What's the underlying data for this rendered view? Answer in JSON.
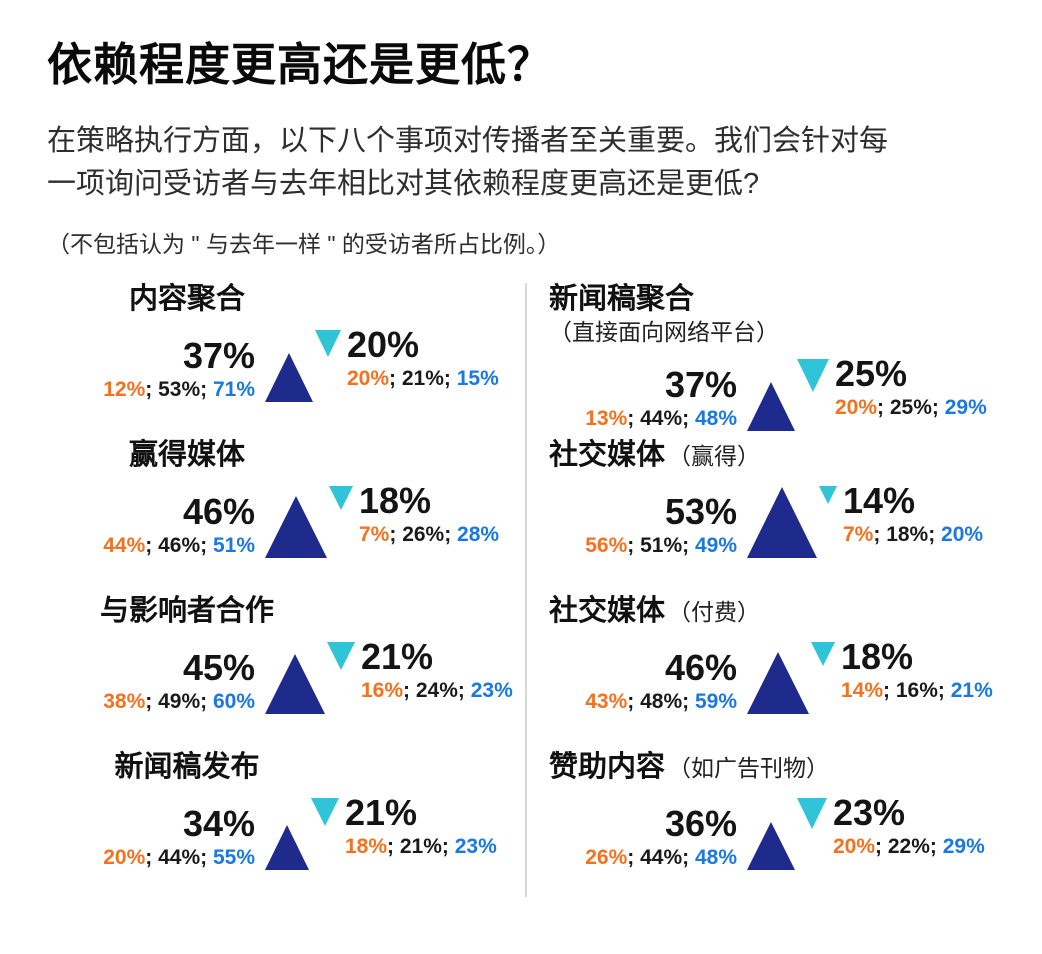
{
  "page": {
    "title": "依赖程度更高还是更低？",
    "intro": "在策略执行方面，以下八个事项对传播者至关重要。我们会针对每一项询问受访者与去年相比对其依赖程度更高还是更低?",
    "note": "（不包括认为 \" 与去年一样 \" 的受访者所占比例。）"
  },
  "colors": {
    "up_triangle": "#1e2b8c",
    "down_triangle": "#2fc4d8",
    "breakdown_first": "#f4711f",
    "breakdown_second": "#1a1a1a",
    "breakdown_third": "#1a78e0"
  },
  "chart_data": {
    "type": "table",
    "title": "依赖程度更高还是更低？",
    "legend_hint": "深蓝上三角=依赖更高%，青色下三角=依赖更低%；小字三组数值依次为橙/黑/蓝",
    "items": [
      {
        "title": "内容聚合",
        "subtitle": "",
        "up": {
          "value": 37,
          "label": "37%",
          "breakdown": [
            "12%",
            "53%",
            "71%"
          ]
        },
        "down": {
          "value": 20,
          "label": "20%",
          "breakdown": [
            "20%",
            "21%",
            "15%"
          ]
        }
      },
      {
        "title": "赢得媒体",
        "subtitle": "",
        "up": {
          "value": 46,
          "label": "46%",
          "breakdown": [
            "44%",
            "46%",
            "51%"
          ]
        },
        "down": {
          "value": 18,
          "label": "18%",
          "breakdown": [
            "7%",
            "26%",
            "28%"
          ]
        }
      },
      {
        "title": "与影响者合作",
        "subtitle": "",
        "up": {
          "value": 45,
          "label": "45%",
          "breakdown": [
            "38%",
            "49%",
            "60%"
          ]
        },
        "down": {
          "value": 21,
          "label": "21%",
          "breakdown": [
            "16%",
            "24%",
            "23%"
          ]
        }
      },
      {
        "title": "新闻稿发布",
        "subtitle": "",
        "up": {
          "value": 34,
          "label": "34%",
          "breakdown": [
            "20%",
            "44%",
            "55%"
          ]
        },
        "down": {
          "value": 21,
          "label": "21%",
          "breakdown": [
            "18%",
            "21%",
            "23%"
          ]
        }
      },
      {
        "title": "新闻稿聚合",
        "subtitle": "（直接面向网络平台）",
        "up": {
          "value": 37,
          "label": "37%",
          "breakdown": [
            "13%",
            "44%",
            "48%"
          ]
        },
        "down": {
          "value": 25,
          "label": "25%",
          "breakdown": [
            "20%",
            "25%",
            "29%"
          ]
        }
      },
      {
        "title": "社交媒体",
        "subtitle": "（赢得）",
        "up": {
          "value": 53,
          "label": "53%",
          "breakdown": [
            "56%",
            "51%",
            "49%"
          ]
        },
        "down": {
          "value": 14,
          "label": "14%",
          "breakdown": [
            "7%",
            "18%",
            "20%"
          ]
        }
      },
      {
        "title": "社交媒体",
        "subtitle": "（付费）",
        "up": {
          "value": 46,
          "label": "46%",
          "breakdown": [
            "43%",
            "48%",
            "59%"
          ]
        },
        "down": {
          "value": 18,
          "label": "18%",
          "breakdown": [
            "14%",
            "16%",
            "21%"
          ]
        }
      },
      {
        "title": "赞助内容",
        "subtitle": "（如广告刊物）",
        "up": {
          "value": 36,
          "label": "36%",
          "breakdown": [
            "26%",
            "44%",
            "48%"
          ]
        },
        "down": {
          "value": 23,
          "label": "23%",
          "breakdown": [
            "20%",
            "22%",
            "29%"
          ]
        }
      }
    ]
  }
}
